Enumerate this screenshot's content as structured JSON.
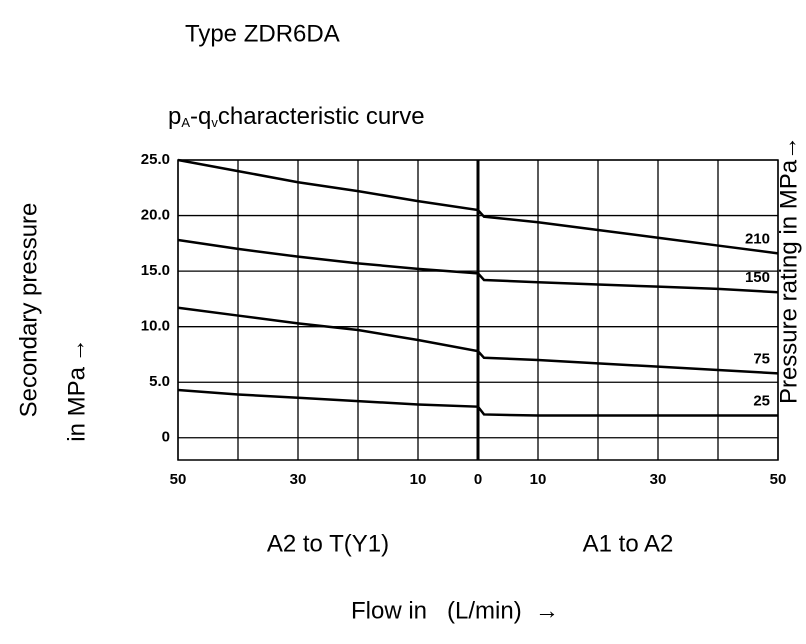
{
  "chart_data": {
    "type": "line",
    "heading": "Type ZDR6DA",
    "title": [
      "p",
      "A",
      "-q",
      "v",
      "characteristic curve"
    ],
    "ylabel": [
      "Secondary pressure",
      "in MPa →"
    ],
    "y2label": "Pressure rating in MPa→",
    "xlabel": "Flow in   (L/min)  →",
    "regions": [
      {
        "label": "A2 to T(Y1)",
        "x": -25
      },
      {
        "label": "A1 to A2",
        "x": 25
      }
    ],
    "x": [
      -50,
      -40,
      -30,
      -20,
      -10,
      0,
      1,
      10,
      20,
      30,
      40,
      50
    ],
    "series": [
      {
        "name": "210",
        "color": "#000000",
        "values": [
          25.0,
          24.0,
          23.0,
          22.2,
          21.3,
          20.5,
          19.9,
          19.4,
          18.7,
          18.0,
          17.3,
          16.6
        ]
      },
      {
        "name": "150",
        "color": "#000000",
        "values": [
          17.8,
          17.0,
          16.3,
          15.7,
          15.2,
          14.8,
          14.2,
          14.0,
          13.8,
          13.6,
          13.4,
          13.1
        ]
      },
      {
        "name": "75",
        "color": "#000000",
        "values": [
          11.7,
          11.0,
          10.3,
          9.7,
          8.8,
          7.8,
          7.2,
          7.0,
          6.7,
          6.4,
          6.1,
          5.8
        ]
      },
      {
        "name": "25",
        "color": "#000000",
        "values": [
          4.3,
          3.9,
          3.6,
          3.3,
          3.0,
          2.8,
          2.1,
          2.0,
          2.0,
          2.0,
          2.0,
          2.0
        ]
      }
    ],
    "xlim": [
      -50,
      50
    ],
    "xticks": [
      {
        "value": -50,
        "label": "50"
      },
      {
        "value": -30,
        "label": "30"
      },
      {
        "value": -10,
        "label": "10"
      },
      0,
      10,
      30,
      50
    ],
    "xminor": [
      -40,
      -20,
      20,
      40
    ],
    "ylim": [
      -2,
      25
    ],
    "yticks": [
      0,
      {
        "value": 5,
        "label": "5.0"
      },
      {
        "value": 10,
        "label": "10.0"
      },
      {
        "value": 15,
        "label": "15.0"
      },
      {
        "value": 20,
        "label": "20.0"
      },
      {
        "value": 25,
        "label": "25.0"
      }
    ],
    "grid": true
  }
}
